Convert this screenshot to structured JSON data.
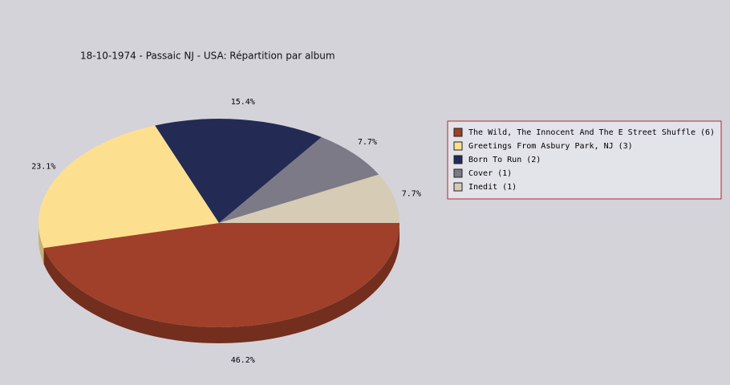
{
  "chart_data": {
    "type": "pie",
    "title": "18-10-1974 - Passaic NJ - USA:  Répartition par album",
    "categories": [
      "The Wild, The Innocent And The E Street Shuffle (6)",
      "Greetings From Asbury Park, NJ (3)",
      "Born To Run (2)",
      "Cover (1)",
      "Inedit (1)"
    ],
    "values": [
      46.2,
      23.1,
      15.4,
      7.7,
      7.7
    ],
    "value_labels": [
      "46.2%",
      "23.1%",
      "15.4%",
      "7.7%",
      "7.7%"
    ],
    "colors": [
      "#a0402a",
      "#fde08f",
      "#232b55",
      "#7c7a86",
      "#d6cbb4"
    ],
    "legend": "right"
  }
}
